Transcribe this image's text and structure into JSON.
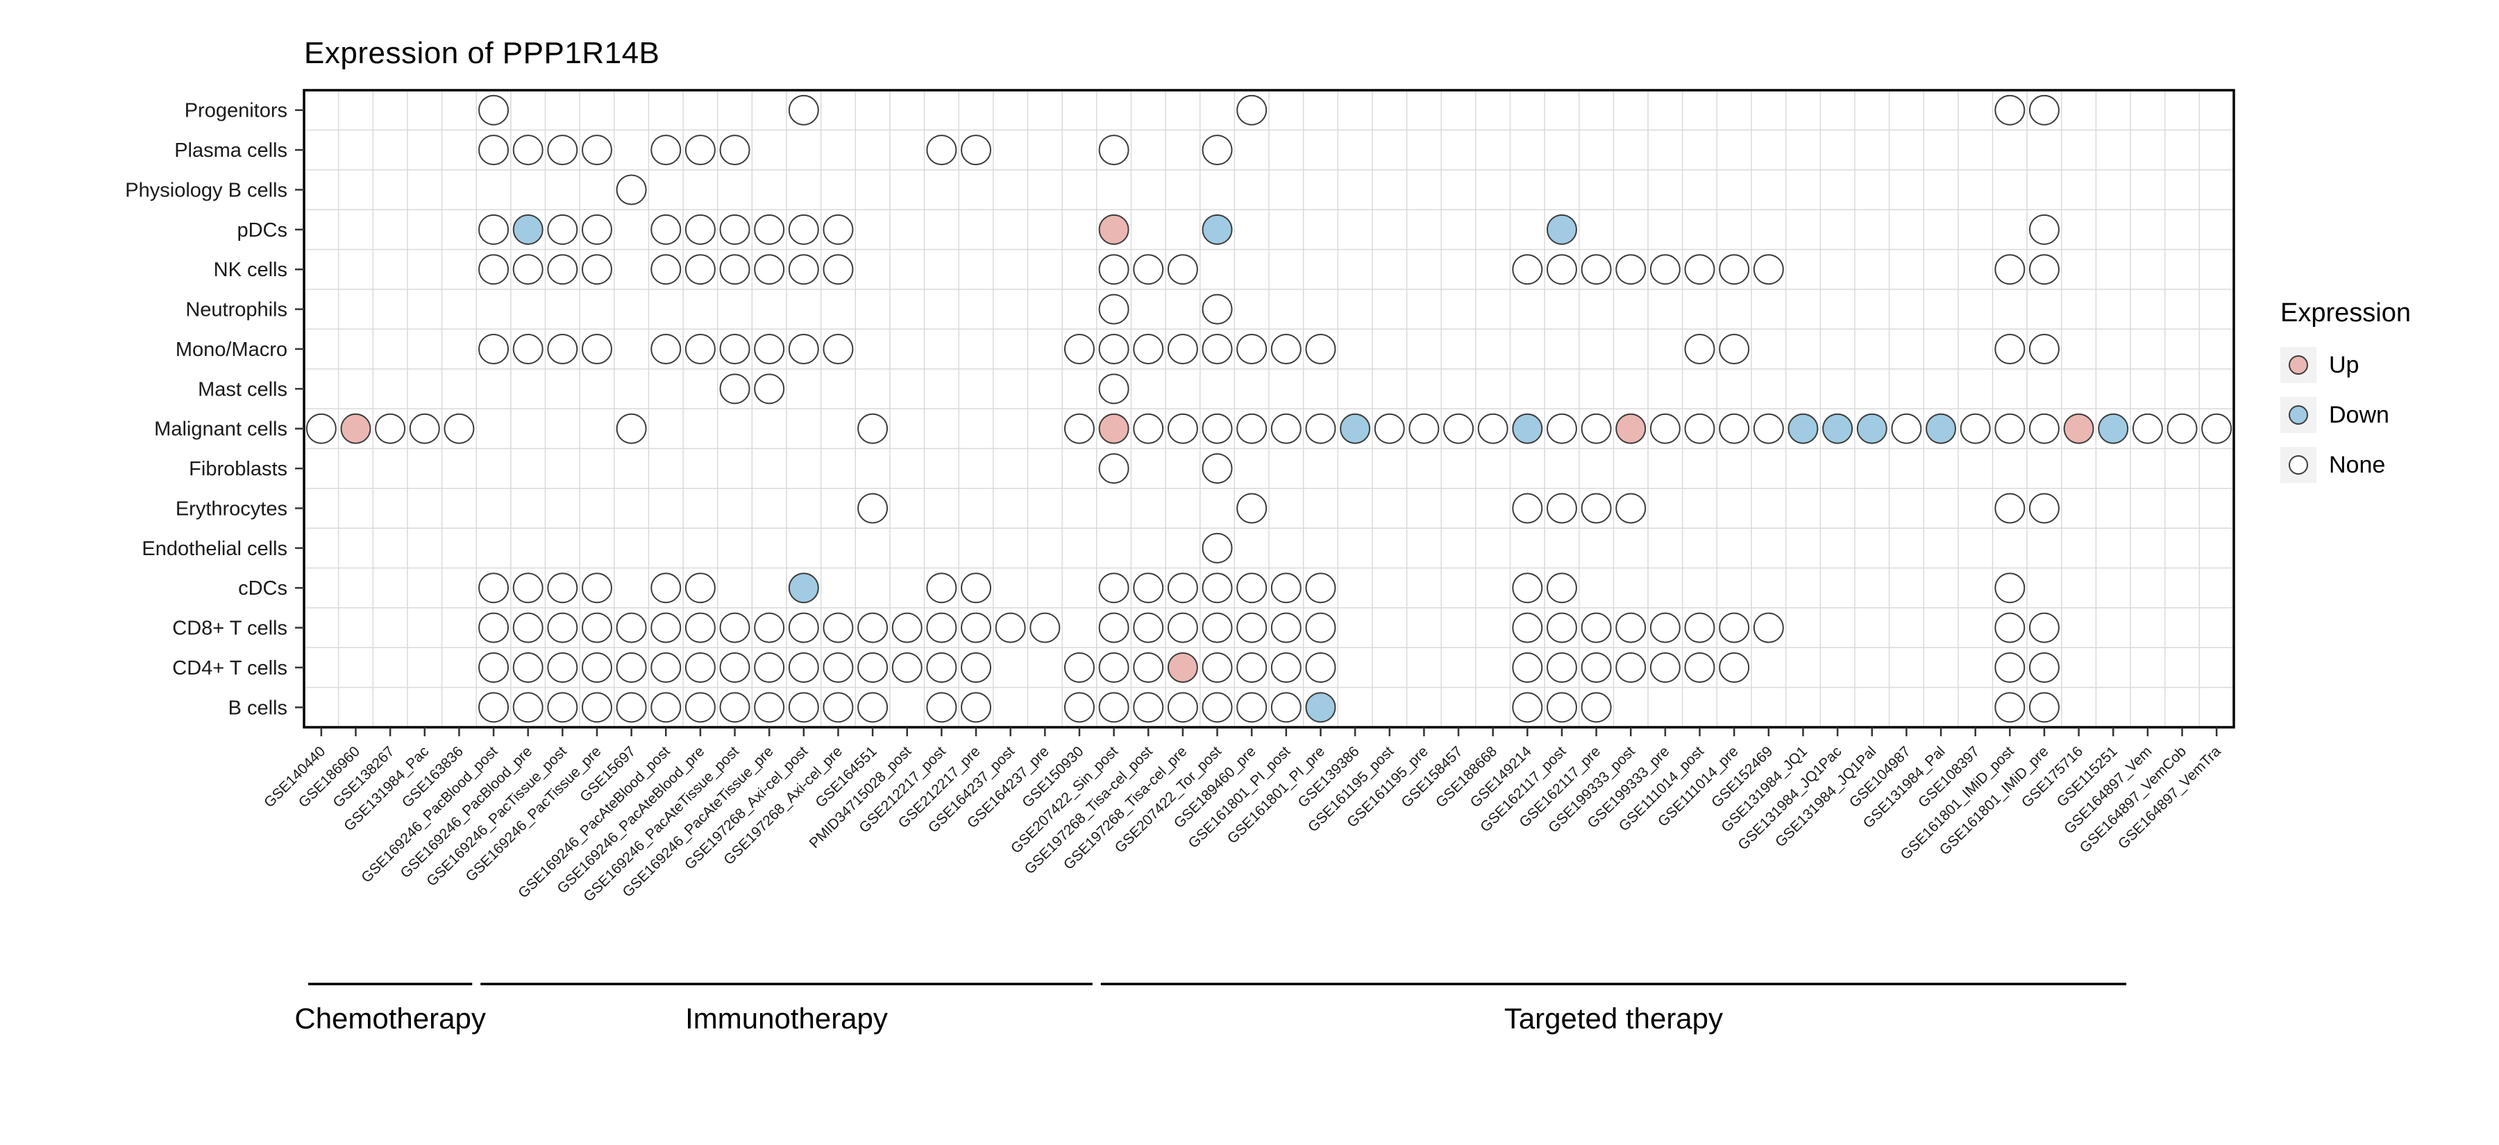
{
  "chart_data": {
    "type": "heatmap",
    "subtype": "dot-matrix",
    "title": "Expression of PPP1R14B",
    "rows": [
      "Progenitors",
      "Plasma cells",
      "Physiology B cells",
      "pDCs",
      "NK cells",
      "Neutrophils",
      "Mono/Macro",
      "Mast cells",
      "Malignant cells",
      "Fibroblasts",
      "Erythrocytes",
      "Endothelial cells",
      "cDCs",
      "CD8+ T cells",
      "CD4+ T cells",
      "B cells"
    ],
    "columns": [
      "GSE140440",
      "GSE186960",
      "GSE138267",
      "GSE131984_Pac",
      "GSE163836",
      "GSE169246_PacBlood_post",
      "GSE169246_PacBlood_pre",
      "GSE169246_PacTissue_post",
      "GSE169246_PacTissue_pre",
      "GSE15697",
      "GSE169246_PacAteBlood_post",
      "GSE169246_PacAteBlood_pre",
      "GSE169246_PacAteTissue_post",
      "GSE169246_PacAteTissue_pre",
      "GSE197268_Axi-cel_post",
      "GSE197268_Axi-cel_pre",
      "GSE164551",
      "PMID34715028_post",
      "GSE212217_post",
      "GSE212217_pre",
      "GSE164237_post",
      "GSE164237_pre",
      "GSE150930",
      "GSE207422_Sin_post",
      "GSE197268_Tisa-cel_post",
      "GSE197268_Tisa-cel_pre",
      "GSE207422_Tor_post",
      "GSE189460_pre",
      "GSE161801_PI_post",
      "GSE161801_PI_pre",
      "GSE139386",
      "GSE161195_post",
      "GSE161195_pre",
      "GSE158457",
      "GSE188668",
      "GSE149214",
      "GSE162117_post",
      "GSE162117_pre",
      "GSE199333_post",
      "GSE199333_pre",
      "GSE111014_post",
      "GSE111014_pre",
      "GSE152469",
      "GSE131984_JQ1",
      "GSE131984_JQ1Pac",
      "GSE131984_JQ1Pal",
      "GSE104987",
      "GSE131984_Pal",
      "GSE108397",
      "GSE161801_IMiD_post",
      "GSE161801_IMiD_pre",
      "GSE175716",
      "GSE115251",
      "GSE164897_Vem",
      "GSE164897_VemCob",
      "GSE164897_VemTra"
    ],
    "groups": [
      {
        "label": "Chemotherapy",
        "start": 0,
        "end": 4
      },
      {
        "label": "Immunotherapy",
        "start": 5,
        "end": 22
      },
      {
        "label": "Targeted therapy",
        "start": 23,
        "end": 52
      }
    ],
    "legend": {
      "title": "Expression",
      "items": [
        {
          "label": "Up",
          "color": "#EBB7B2"
        },
        {
          "label": "Down",
          "color": "#A0CBE2"
        },
        {
          "label": "None",
          "color": "#FFFFFF"
        }
      ]
    },
    "colors": {
      "up": "#EBB7B2",
      "down": "#A0CBE2",
      "none": "#FFFFFF",
      "grid": "#DADADA",
      "dot_stroke": "#3C3C3C",
      "border": "#000000"
    },
    "cells": [
      {
        "row": "Progenitors",
        "none": [
          5,
          14,
          27,
          49,
          50
        ],
        "up": [],
        "down": []
      },
      {
        "row": "Plasma cells",
        "none": [
          5,
          6,
          7,
          8,
          10,
          11,
          12,
          18,
          19,
          23,
          26
        ],
        "up": [],
        "down": []
      },
      {
        "row": "Physiology B cells",
        "none": [
          9
        ],
        "up": [],
        "down": []
      },
      {
        "row": "pDCs",
        "none": [
          5,
          7,
          8,
          10,
          11,
          12,
          13,
          14,
          15,
          50
        ],
        "up": [
          23
        ],
        "down": [
          6,
          26,
          36
        ]
      },
      {
        "row": "NK cells",
        "none": [
          5,
          6,
          7,
          8,
          10,
          11,
          12,
          13,
          14,
          15,
          23,
          24,
          25,
          35,
          36,
          37,
          38,
          39,
          40,
          41,
          42,
          49,
          50
        ],
        "up": [],
        "down": []
      },
      {
        "row": "Neutrophils",
        "none": [
          23,
          26
        ],
        "up": [],
        "down": []
      },
      {
        "row": "Mono/Macro",
        "none": [
          5,
          6,
          7,
          8,
          10,
          11,
          12,
          13,
          14,
          15,
          22,
          23,
          24,
          25,
          26,
          27,
          28,
          29,
          40,
          41,
          49,
          50
        ],
        "up": [],
        "down": []
      },
      {
        "row": "Mast cells",
        "none": [
          12,
          13,
          23
        ],
        "up": [],
        "down": []
      },
      {
        "row": "Malignant cells",
        "none": [
          0,
          2,
          3,
          4,
          9,
          16,
          22,
          24,
          25,
          26,
          27,
          28,
          29,
          31,
          32,
          33,
          34,
          36,
          37,
          39,
          40,
          41,
          42,
          46,
          48,
          49,
          50,
          53,
          54,
          55
        ],
        "up": [
          1,
          23,
          38,
          51
        ],
        "down": [
          30,
          35,
          43,
          44,
          45,
          47,
          52
        ]
      },
      {
        "row": "Fibroblasts",
        "none": [
          23,
          26
        ],
        "up": [],
        "down": []
      },
      {
        "row": "Erythrocytes",
        "none": [
          16,
          27,
          35,
          36,
          37,
          38,
          49,
          50
        ],
        "up": [],
        "down": []
      },
      {
        "row": "Endothelial cells",
        "none": [
          26
        ],
        "up": [],
        "down": []
      },
      {
        "row": "cDCs",
        "none": [
          5,
          6,
          7,
          8,
          10,
          11,
          18,
          19,
          23,
          24,
          25,
          26,
          27,
          28,
          29,
          35,
          36,
          49
        ],
        "up": [],
        "down": [
          14
        ]
      },
      {
        "row": "CD8+ T cells",
        "none": [
          5,
          6,
          7,
          8,
          9,
          10,
          11,
          12,
          13,
          14,
          15,
          16,
          17,
          18,
          19,
          20,
          21,
          23,
          24,
          25,
          26,
          27,
          28,
          29,
          35,
          36,
          37,
          38,
          39,
          40,
          41,
          42,
          49,
          50
        ],
        "up": [],
        "down": []
      },
      {
        "row": "CD4+ T cells",
        "none": [
          5,
          6,
          7,
          8,
          9,
          10,
          11,
          12,
          13,
          14,
          15,
          16,
          17,
          18,
          19,
          22,
          23,
          24,
          26,
          27,
          28,
          29,
          35,
          36,
          37,
          38,
          39,
          40,
          41,
          49,
          50
        ],
        "up": [
          25
        ],
        "down": []
      },
      {
        "row": "B cells",
        "none": [
          5,
          6,
          7,
          8,
          9,
          10,
          11,
          12,
          13,
          14,
          15,
          16,
          18,
          19,
          22,
          23,
          24,
          25,
          26,
          27,
          28,
          35,
          36,
          37,
          49,
          50
        ],
        "up": [],
        "down": [
          29
        ]
      }
    ]
  }
}
